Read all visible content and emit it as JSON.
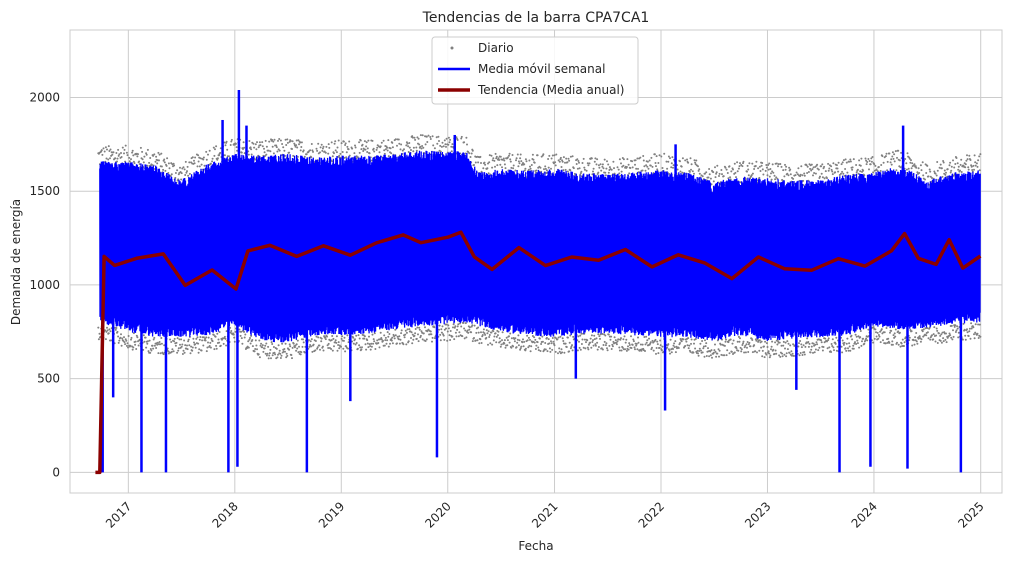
{
  "chart_data": {
    "type": "line",
    "title": "Tendencias de la barra CPA7CA1",
    "xlabel": "Fecha",
    "ylabel": "Demanda de energía",
    "xlim": [
      "2016-06-15",
      "2025-03-15"
    ],
    "ylim": [
      -110,
      2360
    ],
    "grid": true,
    "legend_position": "top-center",
    "x_tick_labels": [
      "2017",
      "2018",
      "2019",
      "2020",
      "2021",
      "2022",
      "2023",
      "2024",
      "2025"
    ],
    "y_tick_labels": [
      "0",
      "500",
      "1000",
      "1500",
      "2000"
    ],
    "y_ticks": [
      0,
      500,
      1000,
      1500,
      2000
    ],
    "legend": [
      "Diario",
      "Media móvil semanal",
      "Tendencia (Media anual)"
    ],
    "colors": {
      "daily": "#808080",
      "weekly": "#0000ff",
      "trend": "#8b0000",
      "grid": "#cccccc",
      "axes": "#cccccc"
    },
    "series": [
      {
        "name": "Diario",
        "style": "scatter",
        "summary": {
          "start": "2016-09-20",
          "end": "2024-12-31",
          "typical_low": [
            650,
            850
          ],
          "typical_high": [
            1600,
            1800
          ],
          "max": 2240
        }
      },
      {
        "name": "Media móvil semanal",
        "style": "line",
        "envelope": {
          "x": [
            "2016-09-25",
            "2017-01-01",
            "2017-04-01",
            "2017-07-01",
            "2017-10-01",
            "2018-01-01",
            "2018-04-01",
            "2018-07-01",
            "2018-10-01",
            "2019-01-01",
            "2019-04-01",
            "2019-07-01",
            "2019-10-01",
            "2020-01-01",
            "2020-03-01",
            "2020-04-15",
            "2020-07-01",
            "2020-10-01",
            "2021-01-01",
            "2021-04-01",
            "2021-07-01",
            "2021-10-01",
            "2022-01-01",
            "2022-04-01",
            "2022-07-01",
            "2022-10-01",
            "2023-01-01",
            "2023-04-01",
            "2023-07-01",
            "2023-10-01",
            "2024-01-01",
            "2024-04-01",
            "2024-07-01",
            "2024-10-01",
            "2024-12-31"
          ],
          "upper": [
            1660,
            1660,
            1640,
            1560,
            1650,
            1700,
            1690,
            1700,
            1680,
            1690,
            1690,
            1700,
            1720,
            1710,
            1720,
            1600,
            1620,
            1610,
            1620,
            1600,
            1590,
            1600,
            1620,
            1600,
            1550,
            1580,
            1570,
            1560,
            1560,
            1590,
            1600,
            1640,
            1560,
            1600,
            1620
          ],
          "lower": [
            800,
            750,
            720,
            720,
            730,
            780,
            700,
            690,
            730,
            730,
            740,
            760,
            780,
            790,
            800,
            780,
            750,
            730,
            720,
            740,
            740,
            730,
            720,
            720,
            700,
            730,
            700,
            710,
            720,
            730,
            780,
            760,
            770,
            790,
            800
          ]
        },
        "spikes_up": [
          {
            "x": "2017-11-20",
            "y": 1880
          },
          {
            "x": "2018-01-15",
            "y": 2040
          },
          {
            "x": "2018-02-10",
            "y": 1850
          },
          {
            "x": "2020-01-25",
            "y": 1800
          },
          {
            "x": "2022-02-20",
            "y": 1750
          },
          {
            "x": "2024-04-10",
            "y": 1850
          }
        ],
        "spikes_down": [
          {
            "x": "2016-10-05",
            "y": 0
          },
          {
            "x": "2016-11-10",
            "y": 400
          },
          {
            "x": "2017-02-15",
            "y": 0
          },
          {
            "x": "2017-05-10",
            "y": 0
          },
          {
            "x": "2017-12-10",
            "y": 0
          },
          {
            "x": "2018-01-10",
            "y": 30
          },
          {
            "x": "2018-09-05",
            "y": 0
          },
          {
            "x": "2019-02-01",
            "y": 380
          },
          {
            "x": "2019-11-25",
            "y": 80
          },
          {
            "x": "2021-03-15",
            "y": 500
          },
          {
            "x": "2022-01-15",
            "y": 330
          },
          {
            "x": "2023-04-10",
            "y": 440
          },
          {
            "x": "2023-09-05",
            "y": 0
          },
          {
            "x": "2023-12-20",
            "y": 30
          },
          {
            "x": "2024-04-25",
            "y": 20
          },
          {
            "x": "2024-10-25",
            "y": 0
          }
        ]
      },
      {
        "name": "Tendencia (Media anual)",
        "style": "line",
        "x": [
          "2016-09-10",
          "2016-09-25",
          "2016-10-10",
          "2016-11-15",
          "2017-02-01",
          "2017-05-01",
          "2017-07-15",
          "2017-10-15",
          "2018-01-05",
          "2018-02-15",
          "2018-05-01",
          "2018-08-01",
          "2018-11-01",
          "2019-02-01",
          "2019-05-01",
          "2019-08-01",
          "2019-10-01",
          "2020-01-01",
          "2020-02-15",
          "2020-04-01",
          "2020-06-01",
          "2020-09-01",
          "2020-12-01",
          "2021-03-01",
          "2021-06-01",
          "2021-09-01",
          "2021-12-01",
          "2022-03-01",
          "2022-06-01",
          "2022-09-01",
          "2022-12-01",
          "2023-03-01",
          "2023-06-01",
          "2023-09-01",
          "2023-12-01",
          "2024-03-01",
          "2024-04-15",
          "2024-06-01",
          "2024-08-01",
          "2024-09-15",
          "2024-11-01",
          "2024-12-31"
        ],
        "values": [
          0,
          0,
          1150,
          1100,
          1140,
          1170,
          1000,
          1080,
          980,
          1180,
          1210,
          1150,
          1210,
          1160,
          1220,
          1270,
          1230,
          1250,
          1280,
          1150,
          1080,
          1200,
          1100,
          1150,
          1130,
          1190,
          1100,
          1160,
          1120,
          1030,
          1150,
          1090,
          1080,
          1140,
          1100,
          1180,
          1270,
          1140,
          1110,
          1240,
          1090,
          1150
        ]
      }
    ]
  }
}
